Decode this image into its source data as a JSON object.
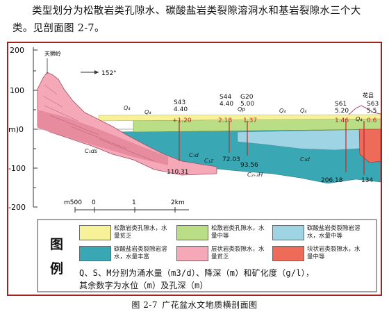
{
  "intro": {
    "line1": "类型划分为松散岩类孔隙水、碳酸盐岩类裂隙溶洞水和基岩裂隙水三个大",
    "line2": "类。见剖面图 2-7。"
  },
  "section": {
    "y_ticks": [
      "200",
      "100",
      "m)0",
      "-100",
      "-200"
    ],
    "mountain_label": "天狮岭",
    "direction": "152°",
    "right_mountain": "花县",
    "scale_labels": [
      "m500",
      "0",
      "1",
      "2km"
    ],
    "wells": [
      {
        "id": "S43",
        "value": "4.40",
        "level": "+1.20"
      },
      {
        "id": "S44",
        "value": "4.40",
        "level": "2.18"
      },
      {
        "id": "G20",
        "value": "5.00",
        "level": "1.37"
      },
      {
        "id": "S61",
        "value": "5.20",
        "level": "1.46"
      },
      {
        "id": "S63",
        "value": "5.5",
        "level": "0.6"
      }
    ],
    "depths": [
      "110.31",
      "72.03",
      "93.56",
      "206.18",
      "134"
    ],
    "formation_labels": [
      "Q₄",
      "Q₄",
      "Q₄",
      "Q₄",
      "Q₄",
      "Qp",
      "C₁ds",
      "C₁d",
      "C₁z",
      "C₁d",
      "C₂₊₃H"
    ]
  },
  "legend": {
    "title_chars": [
      "图",
      "例"
    ],
    "items": [
      {
        "color": "#f7f29a",
        "text": "松散岩类孔隙水，水量贫乏"
      },
      {
        "color": "#b9de86",
        "text": "松散岩类孔隙水，水量中等"
      },
      {
        "color": "#9fd4e4",
        "text": "碳酸盐岩类裂隙岩溶水，水量中等"
      },
      {
        "color": "#3aa8b4",
        "text": "碳酸盐岩类裂隙岩溶水，水量丰富"
      },
      {
        "color": "#f4a8b8",
        "text": "层状岩类裂隙水，水量贫乏"
      },
      {
        "color": "#ee6b5a",
        "text": "块状岩类裂隙水，水量中等"
      }
    ],
    "note1": "Q、S、M分别为涌水量（m3/d）、降深（m）和矿化度（g/l），",
    "note2": "其余数字为水位（m）及孔深（m）"
  },
  "caption": {
    "number": "图 2-7",
    "title": "广花盆水文地质横剖面图"
  },
  "colors": {
    "frame": "#9e2424",
    "pink": "#f4a8b8",
    "teal": "#3aa8b4",
    "lightblue": "#9fd4e4",
    "green": "#b9de86",
    "yellow": "#f7f29a",
    "red": "#ee6b5a"
  }
}
